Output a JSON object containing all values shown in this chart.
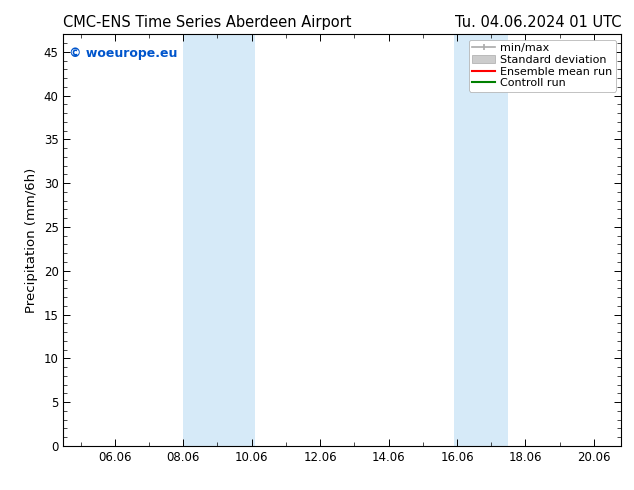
{
  "title_left": "CMC-ENS Time Series Aberdeen Airport",
  "title_right": "Tu. 04.06.2024 01 UTC",
  "ylabel": "Precipitation (mm/6h)",
  "xlim_start": 4.5,
  "xlim_end": 20.8,
  "ylim": [
    0,
    47
  ],
  "yticks": [
    0,
    5,
    10,
    15,
    20,
    25,
    30,
    35,
    40,
    45
  ],
  "xtick_labels": [
    "06.06",
    "08.06",
    "10.06",
    "12.06",
    "14.06",
    "16.06",
    "18.06",
    "20.06"
  ],
  "xtick_positions": [
    6,
    8,
    10,
    12,
    14,
    16,
    18,
    20
  ],
  "shaded_band1_xmin": 8.0,
  "shaded_band1_xmax": 10.1,
  "shaded_band2_xmin": 15.9,
  "shaded_band2_xmax": 17.5,
  "shaded_color": "#d6eaf8",
  "watermark_text": "© woeurope.eu",
  "watermark_color": "#0055cc",
  "legend_labels": [
    "min/max",
    "Standard deviation",
    "Ensemble mean run",
    "Controll run"
  ],
  "legend_colors_line": [
    "#aaaaaa",
    "#cccccc",
    "#ff0000",
    "#008000"
  ],
  "bg_color": "#ffffff",
  "title_fontsize": 10.5,
  "tick_fontsize": 8.5,
  "ylabel_fontsize": 9.5,
  "legend_fontsize": 8,
  "watermark_fontsize": 9
}
